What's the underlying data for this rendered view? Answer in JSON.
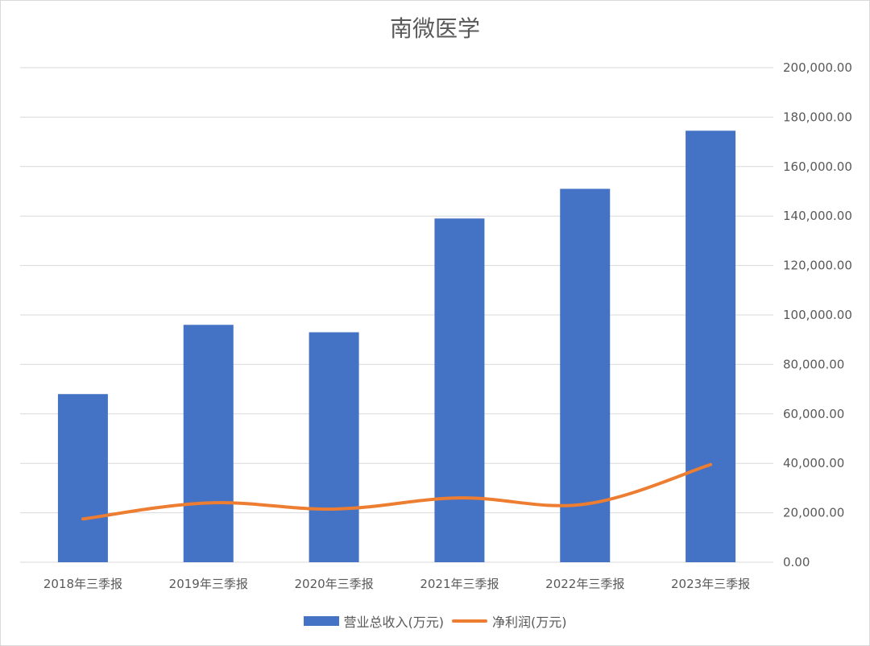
{
  "chart_data": {
    "type": "bar",
    "title": "南微医学",
    "categories": [
      "2018年三季报",
      "2019年三季报",
      "2020年三季报",
      "2021年三季报",
      "2022年三季报",
      "2023年三季报"
    ],
    "series": [
      {
        "name": "营业总收入(万元)",
        "type": "bar",
        "color": "#4472C4",
        "values": [
          68000,
          96000,
          93000,
          139000,
          151000,
          174500
        ]
      },
      {
        "name": "净利润(万元)",
        "type": "line",
        "color": "#ED7D31",
        "values": [
          17500,
          24000,
          21500,
          26000,
          23500,
          39500
        ]
      }
    ],
    "ylim": [
      0,
      200000
    ],
    "yticks": [
      "0.00",
      "20,000.00",
      "40,000.00",
      "60,000.00",
      "80,000.00",
      "100,000.00",
      "120,000.00",
      "140,000.00",
      "160,000.00",
      "180,000.00",
      "200,000.00"
    ],
    "y_axis_position": "right",
    "grid": true,
    "legend_position": "bottom"
  }
}
